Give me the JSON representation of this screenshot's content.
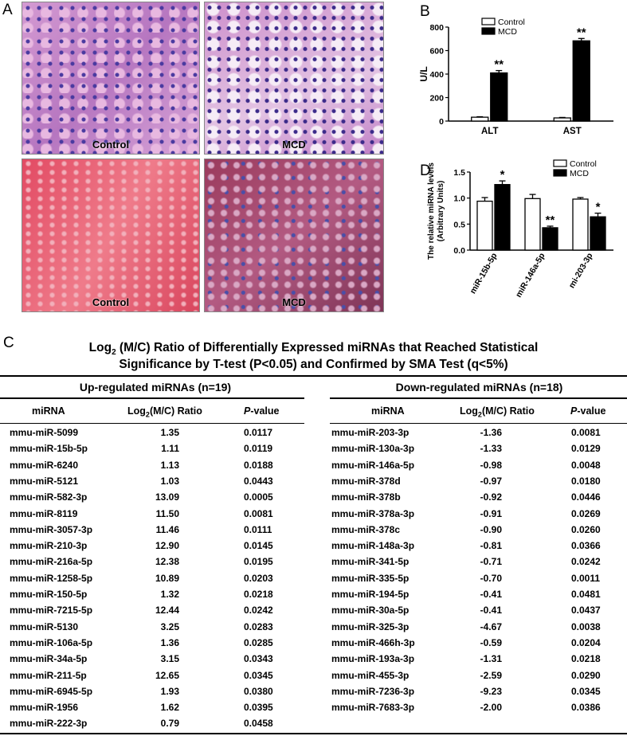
{
  "panels": {
    "A": "A",
    "B": "B",
    "C": "C",
    "D": "D"
  },
  "histology": [
    {
      "label": "Control"
    },
    {
      "label": "MCD"
    },
    {
      "label": "Control"
    },
    {
      "label": "MCD"
    }
  ],
  "chart_data": [
    {
      "type": "bar",
      "panel": "B",
      "categories": [
        "ALT",
        "AST"
      ],
      "series": [
        {
          "name": "Control",
          "values": [
            33,
            27
          ],
          "errors": [
            4,
            4
          ],
          "color": "#ffffff"
        },
        {
          "name": "MCD",
          "values": [
            410,
            683
          ],
          "errors": [
            20,
            20
          ],
          "color": "#000000"
        }
      ],
      "annotations": [
        "**",
        "**"
      ],
      "ylabel": "U/L",
      "ylim": [
        0,
        800
      ],
      "yticks": [
        "0",
        "200",
        "400",
        "600",
        "800"
      ],
      "legend": "top-left"
    },
    {
      "type": "bar",
      "panel": "D",
      "categories": [
        "miR-15b-5p",
        "miR-146a-5p",
        "mi-203-3p"
      ],
      "series": [
        {
          "name": "Control",
          "values": [
            0.94,
            0.99,
            0.98
          ],
          "errors": [
            0.07,
            0.08,
            0.03
          ],
          "color": "#ffffff"
        },
        {
          "name": "MCD",
          "values": [
            1.26,
            0.43,
            0.64
          ],
          "errors": [
            0.07,
            0.03,
            0.07
          ],
          "color": "#000000"
        }
      ],
      "annotations": [
        "*",
        "**",
        "*"
      ],
      "ylabel": "The relative miRNA levels",
      "ylabel2": "(Arbitrary Units)",
      "ylim": [
        0,
        1.5
      ],
      "yticks": [
        "0.0",
        "0.5",
        "1.0",
        "1.5"
      ],
      "legend": "top-right"
    }
  ],
  "table": {
    "title_line1_pre": "Log",
    "title_line1_sub": "2",
    "title_line1_post": " (M/C) Ratio of Differentially Expressed miRNAs that Reached Statistical",
    "title_line2": "Significance by T-test (P<0.05) and Confirmed by SMA Test (q<5%)",
    "up_header": "Up-regulated miRNAs (n=19)",
    "down_header": "Down-regulated miRNAs (n=18)",
    "col_mirna": "miRNA",
    "col_ratio_pre": "Log",
    "col_ratio_sub": "2",
    "col_ratio_post": "(M/C) Ratio",
    "col_p_italic": "P",
    "col_p_rest": "-value",
    "up": [
      [
        "mmu-miR-5099",
        "1.35",
        "0.0117"
      ],
      [
        "mmu-miR-15b-5p",
        "1.11",
        "0.0119"
      ],
      [
        "mmu-miR-6240",
        "1.13",
        "0.0188"
      ],
      [
        "mmu-miR-5121",
        "1.03",
        "0.0443"
      ],
      [
        "mmu-miR-582-3p",
        "13.09",
        "0.0005"
      ],
      [
        "mmu-miR-8119",
        "11.50",
        "0.0081"
      ],
      [
        "mmu-miR-3057-3p",
        "11.46",
        "0.0111"
      ],
      [
        "mmu-miR-210-3p",
        "12.90",
        "0.0145"
      ],
      [
        "mmu-miR-216a-5p",
        "12.38",
        "0.0195"
      ],
      [
        "mmu-miR-1258-5p",
        "10.89",
        "0.0203"
      ],
      [
        "mmu-miR-150-5p",
        "1.32",
        "0.0218"
      ],
      [
        "mmu-miR-7215-5p",
        "12.44",
        "0.0242"
      ],
      [
        "mmu-miR-5130",
        "3.25",
        "0.0283"
      ],
      [
        "mmu-miR-106a-5p",
        "1.36",
        "0.0285"
      ],
      [
        "mmu-miR-34a-5p",
        "3.15",
        "0.0343"
      ],
      [
        "mmu-miR-211-5p",
        "12.65",
        "0.0345"
      ],
      [
        "mmu-miR-6945-5p",
        "1.93",
        "0.0380"
      ],
      [
        "mmu-miR-1956",
        "1.62",
        "0.0395"
      ],
      [
        "mmu-miR-222-3p",
        "0.79",
        "0.0458"
      ]
    ],
    "down": [
      [
        "mmu-miR-203-3p",
        "-1.36",
        "0.0081"
      ],
      [
        "mmu-miR-130a-3p",
        "-1.33",
        "0.0129"
      ],
      [
        "mmu-miR-146a-5p",
        "-0.98",
        "0.0048"
      ],
      [
        "mmu-miR-378d",
        "-0.97",
        "0.0180"
      ],
      [
        "mmu-miR-378b",
        "-0.92",
        "0.0446"
      ],
      [
        "mmu-miR-378a-3p",
        "-0.91",
        "0.0269"
      ],
      [
        "mmu-miR-378c",
        "-0.90",
        "0.0260"
      ],
      [
        "mmu-miR-148a-3p",
        "-0.81",
        "0.0366"
      ],
      [
        "mmu-miR-341-5p",
        "-0.71",
        "0.0242"
      ],
      [
        "mmu-miR-335-5p",
        "-0.70",
        "0.0011"
      ],
      [
        "mmu-miR-194-5p",
        "-0.41",
        "0.0481"
      ],
      [
        "mmu-miR-30a-5p",
        "-0.41",
        "0.0437"
      ],
      [
        "mmu-miR-325-3p",
        "-4.67",
        "0.0038"
      ],
      [
        "mmu-miR-466h-3p",
        "-0.59",
        "0.0204"
      ],
      [
        "mmu-miR-193a-3p",
        "-1.31",
        "0.0218"
      ],
      [
        "mmu-miR-455-3p",
        "-2.59",
        "0.0290"
      ],
      [
        "mmu-miR-7236-3p",
        "-9.23",
        "0.0345"
      ],
      [
        "mmu-miR-7683-3p",
        "-2.00",
        "0.0386"
      ]
    ]
  }
}
